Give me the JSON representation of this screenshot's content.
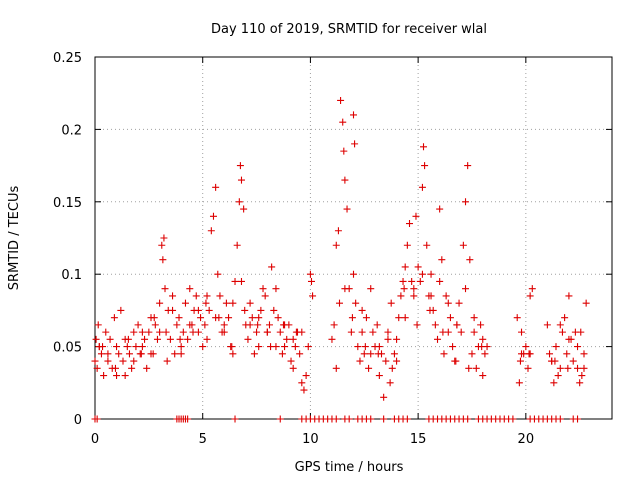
{
  "chart_data": {
    "type": "scatter",
    "title": "Day 110 of 2019, SRMTID for receiver wlal",
    "xlabel": "GPS time / hours",
    "ylabel": "SRMTID / TECUs",
    "xlim": [
      0,
      24
    ],
    "ylim": [
      0,
      0.25
    ],
    "x_ticks": [
      0,
      5,
      10,
      15,
      20
    ],
    "x_tick_labels": [
      "0",
      "5",
      "10",
      "15",
      "20"
    ],
    "y_ticks": [
      0,
      0.05,
      0.1,
      0.15,
      0.2,
      0.25
    ],
    "y_tick_labels": [
      "0",
      "0.05",
      "0.1",
      "0.15",
      "0.2",
      "0.25"
    ],
    "grid": true,
    "marker": "plus",
    "color": "#dd0000",
    "series": [
      {
        "name": "SRMTID",
        "x": [
          0.0,
          0.05,
          0.1,
          0.15,
          0.2,
          0.3,
          0.4,
          0.5,
          0.6,
          0.7,
          0.8,
          0.9,
          1.0,
          1.1,
          1.2,
          1.3,
          1.4,
          1.5,
          1.6,
          1.7,
          1.8,
          1.9,
          2.0,
          2.1,
          2.2,
          2.3,
          2.4,
          2.5,
          2.6,
          2.7,
          2.8,
          2.9,
          3.0,
          3.1,
          3.15,
          3.2,
          3.25,
          3.3,
          3.4,
          3.5,
          3.6,
          3.7,
          3.8,
          3.9,
          4.0,
          4.1,
          4.2,
          4.3,
          4.4,
          4.5,
          4.6,
          4.7,
          4.8,
          4.9,
          5.0,
          5.1,
          5.2,
          5.3,
          5.4,
          5.5,
          5.6,
          5.7,
          5.8,
          5.9,
          6.0,
          6.1,
          6.2,
          6.3,
          6.4,
          6.5,
          6.6,
          6.7,
          6.75,
          6.8,
          6.9,
          7.0,
          7.1,
          7.2,
          7.3,
          7.4,
          7.5,
          7.6,
          7.7,
          7.8,
          7.9,
          8.0,
          8.1,
          8.2,
          8.3,
          8.4,
          8.5,
          8.6,
          8.7,
          8.8,
          8.9,
          9.0,
          9.1,
          9.2,
          9.3,
          9.4,
          9.5,
          9.6,
          9.7,
          9.8,
          9.9,
          10.0,
          10.05,
          10.1,
          11.0,
          11.1,
          11.2,
          11.3,
          11.4,
          11.5,
          11.55,
          11.6,
          11.7,
          11.8,
          11.9,
          12.0,
          12.05,
          12.1,
          12.2,
          12.3,
          12.4,
          12.5,
          12.6,
          12.7,
          12.8,
          12.9,
          13.0,
          13.1,
          13.2,
          13.3,
          13.4,
          13.5,
          13.6,
          13.7,
          13.8,
          13.9,
          14.0,
          14.1,
          14.2,
          14.3,
          14.4,
          14.5,
          14.6,
          14.7,
          14.8,
          14.9,
          15.0,
          15.1,
          15.2,
          15.25,
          15.3,
          15.4,
          15.5,
          15.6,
          15.7,
          15.8,
          15.9,
          16.0,
          16.1,
          16.2,
          16.3,
          16.4,
          16.5,
          16.6,
          16.7,
          16.8,
          16.9,
          17.0,
          17.1,
          17.2,
          17.3,
          17.4,
          17.5,
          17.6,
          17.7,
          17.8,
          17.9,
          18.0,
          18.1,
          18.2,
          19.6,
          19.7,
          19.8,
          19.9,
          20.0,
          20.1,
          20.2,
          20.3,
          21.0,
          21.1,
          21.2,
          21.3,
          21.4,
          21.5,
          21.6,
          21.7,
          21.8,
          21.9,
          22.0,
          22.1,
          22.2,
          22.3,
          22.4,
          22.5,
          22.6,
          22.7,
          22.8,
          0.2,
          0.6,
          1.0,
          1.4,
          1.8,
          2.2,
          2.6,
          3.0,
          3.6,
          4.0,
          4.4,
          4.8,
          5.2,
          5.6,
          6.0,
          6.4,
          6.8,
          7.2,
          7.6,
          8.0,
          8.4,
          8.8,
          9.2,
          9.6,
          11.2,
          11.6,
          12.0,
          12.4,
          12.8,
          13.2,
          13.6,
          14.0,
          14.4,
          14.8,
          15.2,
          15.6,
          16.0,
          16.4,
          16.8,
          17.2,
          17.6,
          18.0,
          19.8,
          20.2,
          21.2,
          21.6,
          22.0,
          22.4,
          22.7,
          0.35,
          0.95,
          1.55,
          2.15,
          2.75,
          3.35,
          3.95,
          4.55,
          5.15,
          5.75,
          6.35,
          6.95,
          7.55,
          8.15,
          8.75,
          9.35,
          11.35,
          11.95,
          12.55,
          13.15,
          13.75,
          14.35,
          14.95,
          15.55,
          16.15,
          16.75,
          17.35,
          17.95,
          19.75,
          20.15,
          21.35,
          21.95,
          22.55,
          0.0,
          0.1,
          3.8,
          3.9,
          4.0,
          4.1,
          4.2,
          4.3,
          6.5,
          8.6,
          9.6,
          9.8,
          10.0,
          10.2,
          10.4,
          10.6,
          10.8,
          11.0,
          11.2,
          11.6,
          11.8,
          12.2,
          12.4,
          12.6,
          12.8,
          13.4,
          13.9,
          14.1,
          14.3,
          14.5,
          15.5,
          15.7,
          15.9,
          16.1,
          16.3,
          16.5,
          16.7,
          16.9,
          17.1,
          17.3,
          17.8,
          18.0,
          18.2,
          18.4,
          18.6,
          18.8,
          19.0,
          19.2,
          19.4,
          20.2,
          20.4,
          20.6,
          20.8,
          21.0,
          21.2,
          21.4,
          21.6,
          22.2,
          22.4
        ],
        "y": [
          0.04,
          0.055,
          0.035,
          0.065,
          0.05,
          0.045,
          0.03,
          0.06,
          0.04,
          0.055,
          0.035,
          0.07,
          0.05,
          0.045,
          0.075,
          0.04,
          0.03,
          0.05,
          0.045,
          0.035,
          0.06,
          0.05,
          0.065,
          0.045,
          0.05,
          0.055,
          0.035,
          0.06,
          0.07,
          0.045,
          0.065,
          0.055,
          0.08,
          0.12,
          0.11,
          0.125,
          0.09,
          0.06,
          0.075,
          0.055,
          0.085,
          0.045,
          0.065,
          0.07,
          0.05,
          0.06,
          0.08,
          0.055,
          0.09,
          0.065,
          0.075,
          0.085,
          0.06,
          0.07,
          0.05,
          0.065,
          0.085,
          0.075,
          0.13,
          0.14,
          0.16,
          0.1,
          0.085,
          0.06,
          0.065,
          0.08,
          0.07,
          0.05,
          0.045,
          0.095,
          0.12,
          0.15,
          0.175,
          0.165,
          0.145,
          0.065,
          0.055,
          0.08,
          0.07,
          0.045,
          0.06,
          0.05,
          0.075,
          0.09,
          0.085,
          0.06,
          0.065,
          0.105,
          0.075,
          0.05,
          0.07,
          0.06,
          0.045,
          0.05,
          0.055,
          0.065,
          0.04,
          0.035,
          0.05,
          0.06,
          0.045,
          0.025,
          0.02,
          0.03,
          0.05,
          0.1,
          0.095,
          0.085,
          0.055,
          0.065,
          0.12,
          0.13,
          0.22,
          0.205,
          0.185,
          0.165,
          0.145,
          0.09,
          0.06,
          0.21,
          0.19,
          0.08,
          0.05,
          0.04,
          0.06,
          0.045,
          0.07,
          0.035,
          0.09,
          0.06,
          0.05,
          0.065,
          0.03,
          0.045,
          0.015,
          0.04,
          0.055,
          0.025,
          0.035,
          0.045,
          0.055,
          0.07,
          0.085,
          0.095,
          0.105,
          0.12,
          0.135,
          0.095,
          0.085,
          0.14,
          0.105,
          0.095,
          0.16,
          0.188,
          0.175,
          0.12,
          0.085,
          0.1,
          0.075,
          0.065,
          0.055,
          0.145,
          0.11,
          0.045,
          0.085,
          0.06,
          0.07,
          0.05,
          0.04,
          0.065,
          0.08,
          0.06,
          0.12,
          0.15,
          0.175,
          0.11,
          0.045,
          0.06,
          0.035,
          0.05,
          0.065,
          0.03,
          0.045,
          0.05,
          0.07,
          0.025,
          0.06,
          0.045,
          0.05,
          0.035,
          0.085,
          0.09,
          0.065,
          0.045,
          0.04,
          0.025,
          0.05,
          0.03,
          0.035,
          0.06,
          0.07,
          0.045,
          0.085,
          0.055,
          0.04,
          0.06,
          0.035,
          0.025,
          0.03,
          0.045,
          0.08,
          0.05,
          0.045,
          0.03,
          0.055,
          0.04,
          0.06,
          0.045,
          0.06,
          0.075,
          0.045,
          0.065,
          0.075,
          0.055,
          0.07,
          0.06,
          0.08,
          0.095,
          0.065,
          0.07,
          0.06,
          0.09,
          0.065,
          0.055,
          0.06,
          0.035,
          0.09,
          0.1,
          0.075,
          0.045,
          0.05,
          0.06,
          0.04,
          0.07,
          0.09,
          0.1,
          0.085,
          0.095,
          0.08,
          0.065,
          0.09,
          0.07,
          0.055,
          0.045,
          0.045,
          0.04,
          0.065,
          0.055,
          0.05,
          0.035,
          0.05,
          0.035,
          0.055,
          0.045,
          0.07,
          0.04,
          0.055,
          0.06,
          0.08,
          0.07,
          0.05,
          0.075,
          0.065,
          0.05,
          0.065,
          0.06,
          0.08,
          0.07,
          0.05,
          0.045,
          0.08,
          0.09,
          0.065,
          0.075,
          0.06,
          0.04,
          0.035,
          0.05,
          0.04,
          0.045,
          0.04,
          0.035,
          0.06,
          0.0,
          0.0,
          0.0,
          0.0,
          0.0,
          0.0,
          0.0,
          0.0,
          0.0,
          0.0,
          0.0,
          0.0,
          0.0,
          0.0,
          0.0,
          0.0,
          0.0,
          0.0,
          0.0,
          0.0,
          0.0,
          0.0,
          0.0,
          0.0,
          0.0,
          0.0,
          0.0,
          0.0,
          0.0,
          0.0,
          0.0,
          0.0,
          0.0,
          0.0,
          0.0,
          0.0,
          0.0,
          0.0,
          0.0,
          0.0,
          0.0,
          0.0,
          0.0,
          0.0,
          0.0,
          0.0,
          0.0,
          0.0,
          0.0,
          0.0,
          0.0,
          0.0,
          0.0,
          0.0,
          0.0,
          0.0,
          0.0,
          0.0,
          0.0
        ]
      }
    ]
  }
}
